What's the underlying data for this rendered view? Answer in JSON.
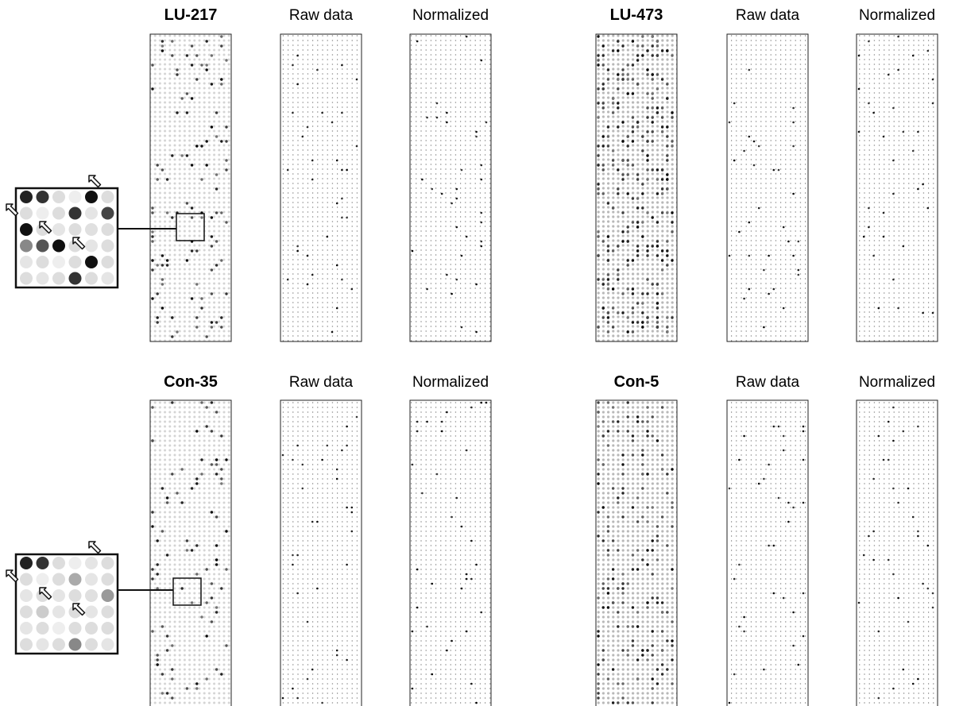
{
  "panels": [
    {
      "sample": "LU-217",
      "columns": [
        "Raw data",
        "Normalized"
      ]
    },
    {
      "sample": "LU-473",
      "columns": [
        "Raw data",
        "Normalized"
      ]
    },
    {
      "sample": "Con-35",
      "columns": [
        "Raw data",
        "Normalized"
      ]
    },
    {
      "sample": "Con-5",
      "columns": [
        "Raw data",
        "Normalized"
      ]
    }
  ]
}
